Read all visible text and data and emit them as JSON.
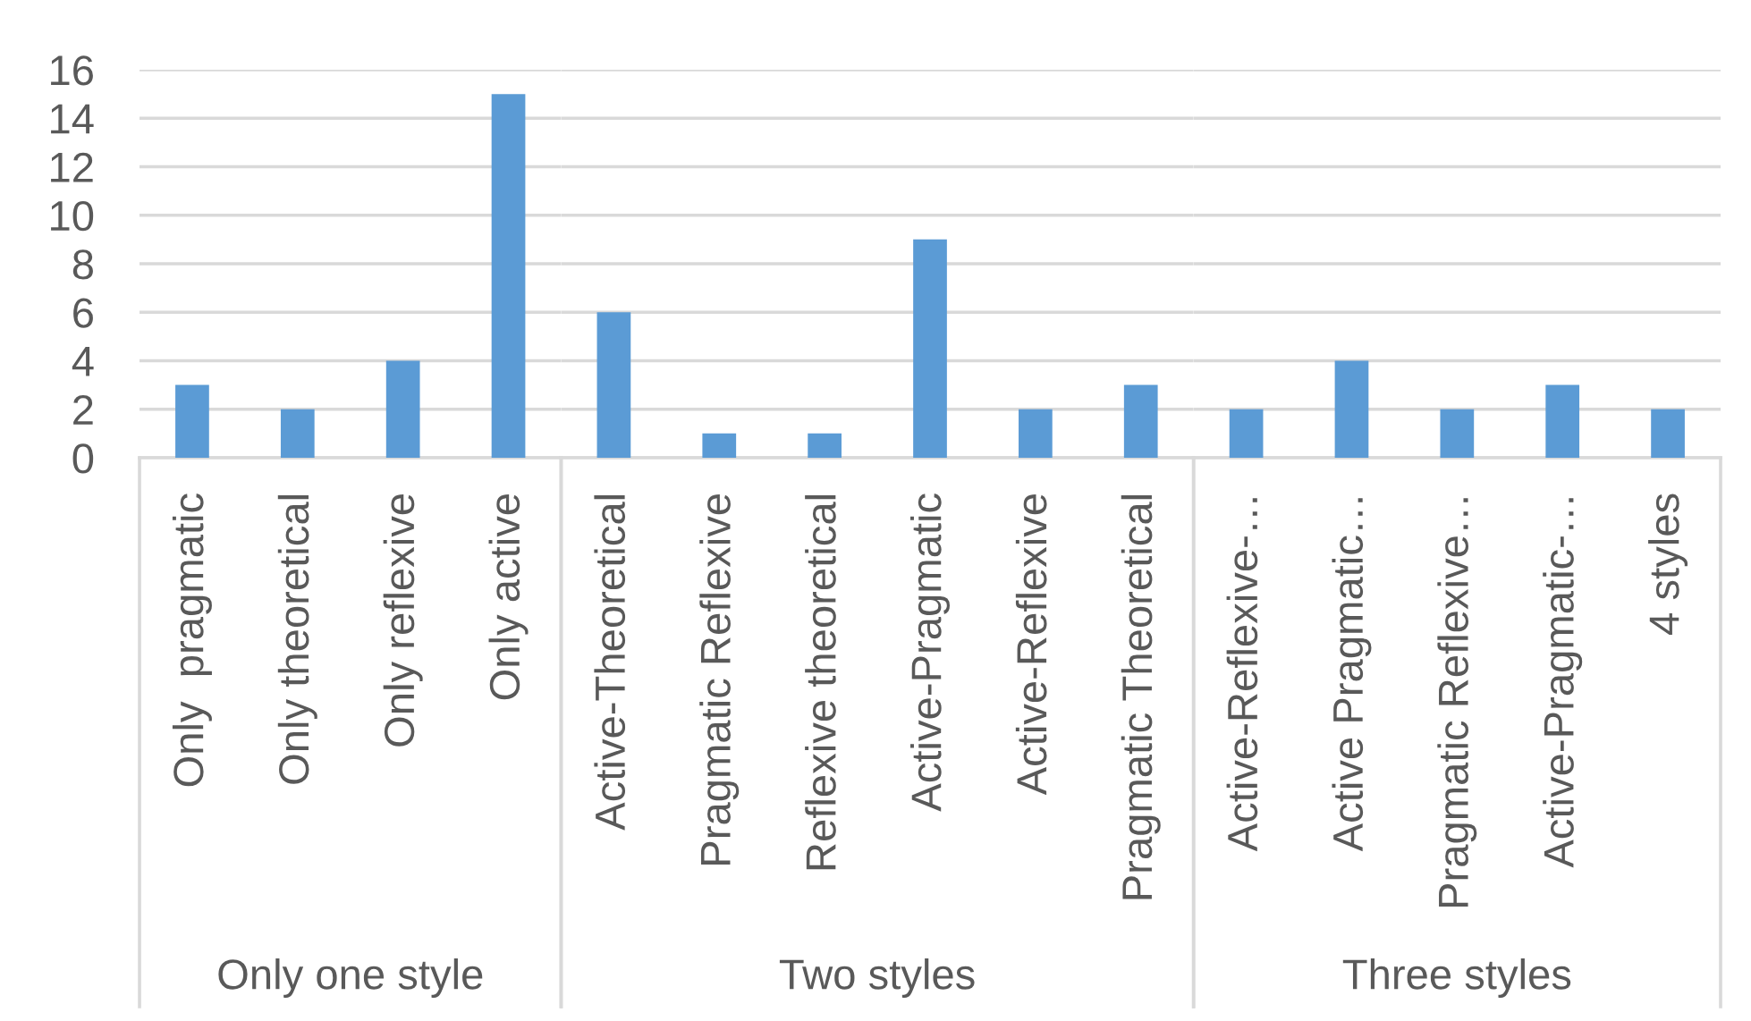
{
  "chart_data": [
    {
      "type": "bar",
      "categories": [
        "Only  pragmatic",
        "Only theoretical",
        "Only reflexive",
        "Only active"
      ],
      "values": [
        3,
        2,
        4,
        15
      ],
      "color": "#5b9bd5",
      "xlabel": "Only one style",
      "ylim": [
        0,
        16
      ],
      "yticks": [
        0,
        2,
        4,
        6,
        8,
        10,
        12,
        14,
        16
      ],
      "grid": "y"
    },
    {
      "type": "bar",
      "categories": [
        "Active-Theoretical",
        "Pragmatic Reflexive",
        "Reflexive theoretical",
        "Active-Pragmatic",
        "Active-Reflexive",
        "Pragmatic Theoretical"
      ],
      "values": [
        6,
        1,
        1,
        9,
        2,
        3
      ],
      "color": "#5b9bd5",
      "xlabel": "Two styles",
      "ylim": [
        0,
        16
      ],
      "yticks": [
        0,
        2,
        4,
        6,
        8,
        10,
        12,
        14,
        16
      ],
      "grid": "y",
      "tick_labels": "x"
    },
    {
      "type": "bar",
      "categories": [
        "Active-Reflexive-…",
        "Active Pragmatic…",
        "Pragmatic Reflexive…",
        "Active-Pragmatic-…",
        "4 styles"
      ],
      "values": [
        2,
        4,
        2,
        3,
        2
      ],
      "color": "#5b9bd5",
      "xlabel": "Three styles",
      "ylim": [
        0,
        16
      ],
      "yticks": [
        0,
        2,
        4,
        6,
        8,
        10,
        12,
        14,
        16
      ],
      "grid": "y",
      "tick_labels": "x"
    }
  ]
}
